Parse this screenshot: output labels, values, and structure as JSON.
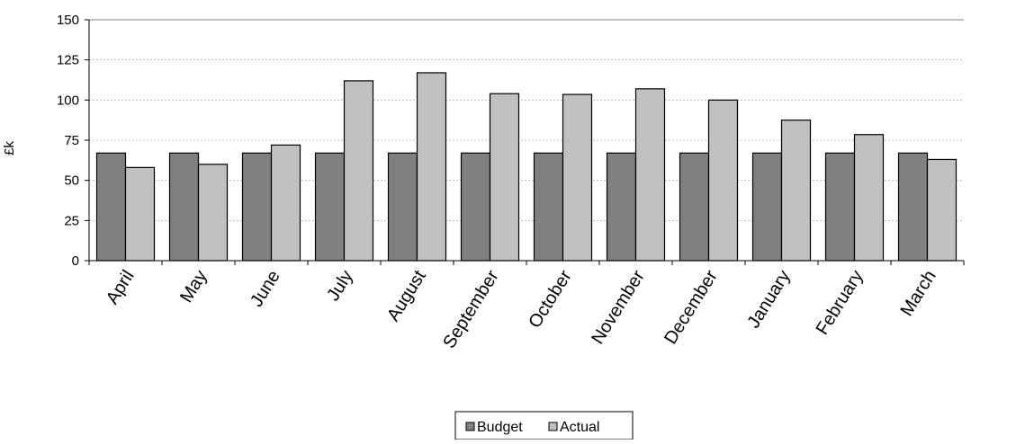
{
  "chart_data": {
    "type": "bar",
    "title": "",
    "xlabel": "",
    "ylabel": "£k",
    "ylim": [
      0,
      150
    ],
    "yticks": [
      0,
      25,
      50,
      75,
      100,
      125,
      150
    ],
    "grid": "horizontal",
    "legend_position": "bottom-center",
    "categories": [
      "April",
      "May",
      "June",
      "July",
      "August",
      "September",
      "October",
      "November",
      "December",
      "January",
      "February",
      "March"
    ],
    "series": [
      {
        "name": "Budget",
        "color": "#808080",
        "values": [
          67,
          67,
          67,
          67,
          67,
          67,
          67,
          67,
          67,
          67,
          67,
          67
        ]
      },
      {
        "name": "Actual",
        "color": "#c0c0c0",
        "values": [
          58,
          60,
          72,
          112,
          117,
          104,
          103.5,
          107,
          100,
          87.5,
          78.5,
          63
        ]
      }
    ]
  }
}
